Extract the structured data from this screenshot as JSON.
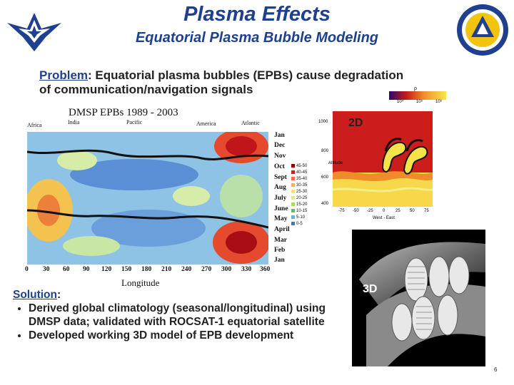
{
  "title": "Plasma Effects",
  "subtitle": "Equatorial Plasma Bubble Modeling",
  "problem": {
    "label": "Problem",
    "text_line1": ":  Equatorial plasma bubbles (EPBs) cause degradation",
    "text_line2": "of communication/navigation signals"
  },
  "map_chart": {
    "title": "DMSP EPBs  1989 - 2003",
    "regions": [
      "Africa",
      "India",
      "Pacific",
      "America",
      "Atlantic"
    ],
    "months": [
      "Jan",
      "Dec",
      "Nov",
      "Oct",
      "Sept",
      "Aug",
      "July",
      "June",
      "May",
      "April",
      "Mar",
      "Feb",
      "Jan"
    ],
    "longitudes": [
      "0",
      "30",
      "60",
      "90",
      "120",
      "150",
      "180",
      "210",
      "240",
      "270",
      "300",
      "330",
      "360"
    ],
    "xlabel": "Longitude",
    "legend": [
      "45-50",
      "40-45",
      "35-40",
      "30-35",
      "25-30",
      "20-25",
      "15-20",
      "10-15",
      "5-10",
      "0-5"
    ]
  },
  "panel2d": {
    "label": "2D",
    "y_ticks": [
      "1000",
      "800",
      "600",
      "400"
    ],
    "x_ticks": [
      "-75",
      "-50",
      "-25",
      "0",
      "25",
      "50",
      "75"
    ],
    "xlabel": "West - East",
    "ylabel": "Altitude",
    "colorbar_ticks": [
      "10⁴",
      "10⁵",
      "10⁶"
    ],
    "colorbar_label": "ρ"
  },
  "panel3d": {
    "label": "3D"
  },
  "solution": {
    "label": "Solution",
    "bullets": [
      "Derived global climatology (seasonal/longitudinal) using DMSP data; validated with ROCSAT-1 equatorial satellite",
      "Developed working 3D model of EPB development"
    ]
  },
  "page_number": "6"
}
